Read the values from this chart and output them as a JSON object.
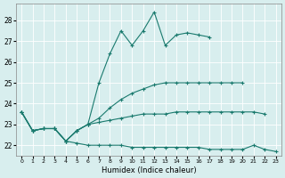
{
  "xlabel": "Humidex (Indice chaleur)",
  "x": [
    0,
    1,
    2,
    3,
    4,
    5,
    6,
    7,
    8,
    9,
    10,
    11,
    12,
    13,
    14,
    15,
    16,
    17,
    18,
    19,
    20,
    21,
    22,
    23
  ],
  "line1": [
    23.6,
    22.7,
    22.8,
    22.8,
    22.2,
    22.7,
    23.0,
    25.0,
    26.4,
    27.5,
    26.8,
    27.5,
    28.4,
    26.8,
    27.3,
    27.4,
    27.3,
    27.2,
    null,
    null,
    null,
    null,
    null,
    null
  ],
  "line2": [
    23.6,
    22.7,
    22.8,
    22.8,
    22.2,
    22.7,
    23.0,
    23.3,
    23.8,
    24.2,
    24.5,
    24.7,
    24.9,
    25.0,
    25.0,
    25.0,
    25.0,
    25.0,
    25.0,
    25.0,
    25.0,
    null,
    null,
    null
  ],
  "line3": [
    23.6,
    22.7,
    22.8,
    22.8,
    22.2,
    22.7,
    23.0,
    23.1,
    23.2,
    23.3,
    23.4,
    23.5,
    23.5,
    23.5,
    23.6,
    23.6,
    23.6,
    23.6,
    23.6,
    23.6,
    23.6,
    23.6,
    23.5,
    null
  ],
  "line4": [
    23.6,
    22.7,
    22.8,
    22.8,
    22.2,
    22.1,
    22.0,
    22.0,
    22.0,
    22.0,
    21.9,
    21.9,
    21.9,
    21.9,
    21.9,
    21.9,
    21.9,
    21.8,
    21.8,
    21.8,
    21.8,
    22.0,
    21.8,
    21.7
  ],
  "line_color": "#1a7a6e",
  "bg_color": "#d8eeee",
  "grid_color": "#ffffff",
  "ylim": [
    21.5,
    28.8
  ],
  "yticks": [
    22,
    23,
    24,
    25,
    26,
    27,
    28
  ],
  "xlim": [
    -0.5,
    23.5
  ]
}
